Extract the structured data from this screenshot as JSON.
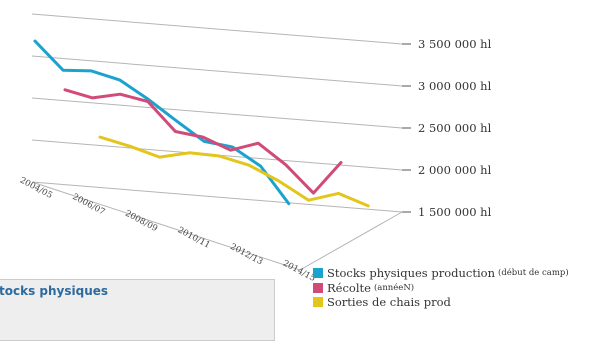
{
  "chart_data": {
    "type": "line",
    "title": "",
    "xlabel": "",
    "ylabel": "",
    "ylim": [
      1500000,
      3500000
    ],
    "y_ticks": [
      "3 500 000 hl",
      "3 000 000 hl",
      "2 500 000 hl",
      "2 000 000 hl",
      "1 500 000 hl"
    ],
    "x_ticks": [
      "2004/05",
      "2006/07",
      "2008/09",
      "2010/11",
      "2012/13",
      "2014/15"
    ],
    "grid": true,
    "legend_position": "bottom-right",
    "series": [
      {
        "name": "Stocks physiques production",
        "note": "(début de camp)",
        "color": "#1ba3cf",
        "values": [
          3180000,
          2860000,
          2880000,
          2800000,
          2600000,
          2370000,
          2150000,
          2110000,
          1910000,
          1490000
        ]
      },
      {
        "name": "Récolte",
        "note": "(annéeN)",
        "color": "#d14a78",
        "values": [
          2630000,
          2560000,
          2630000,
          2570000,
          2240000,
          2200000,
          2070000,
          2180000,
          1950000,
          1640000,
          2030000
        ]
      },
      {
        "name": "Sorties de chais prod",
        "note": "",
        "color": "#e3c51c",
        "values": [
          2100000,
          2020000,
          1920000,
          2000000,
          1990000,
          1910000,
          1750000,
          1550000,
          1660000,
          1540000
        ]
      }
    ]
  },
  "bottom_box_text": "tocks physiques"
}
